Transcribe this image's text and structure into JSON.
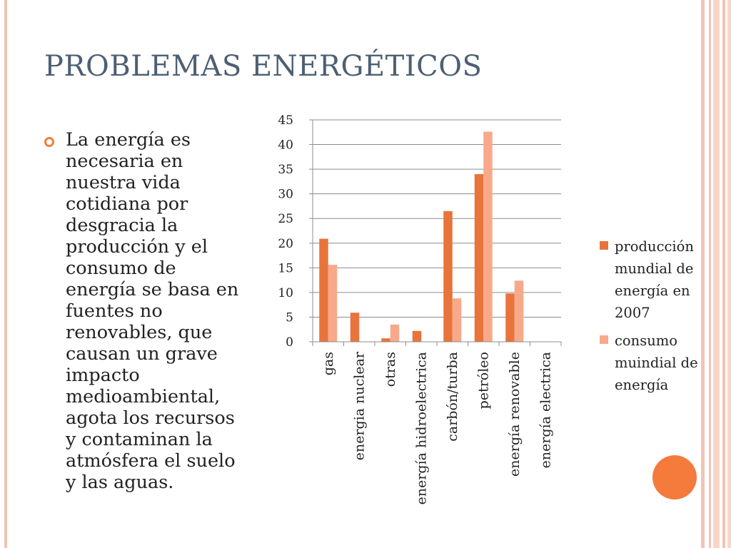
{
  "slide": {
    "title": "PROBLEMAS ENERGÉTICOS",
    "body_lines": [
      "La energía es",
      "necesaria en",
      "nuestra vida",
      "cotidiana por",
      "desgracia la",
      "producción y el",
      "consumo de",
      "energía se basa en",
      "fuentes no",
      "renovables, que",
      "causan un grave",
      "impacto",
      "medioambiental,",
      "agota los recursos",
      "y contaminan la",
      "atmósfera el suelo",
      "y las aguas."
    ],
    "colors": {
      "title": "#4d5f73",
      "accent": "#f47b3c",
      "frame": "#f2c4b4"
    }
  },
  "chart_data": {
    "type": "bar",
    "categories": [
      "gas",
      "energia nuclear",
      "otras",
      "energía hidroelectrica",
      "carbón/turba",
      "petróleo",
      "energía renovable",
      "energía electrica"
    ],
    "series": [
      {
        "name": "producción mundial de energía en 2007",
        "legend_lines": [
          "producción",
          "mundial de",
          "energía en",
          "2007"
        ],
        "color": "#e8743b",
        "values": [
          20.9,
          5.9,
          0.7,
          2.2,
          26.5,
          34.0,
          9.8,
          0
        ]
      },
      {
        "name": "consumo muindial de energía",
        "legend_lines": [
          "consumo",
          "muindial de",
          "energía"
        ],
        "color": "#f7a98a",
        "values": [
          15.6,
          0,
          3.5,
          0,
          8.8,
          42.6,
          12.4,
          0
        ]
      }
    ],
    "yticks": [
      0,
      5,
      10,
      15,
      20,
      25,
      30,
      35,
      40,
      45
    ],
    "ylim": [
      0,
      45
    ],
    "grid": true,
    "legend_position": "right"
  }
}
